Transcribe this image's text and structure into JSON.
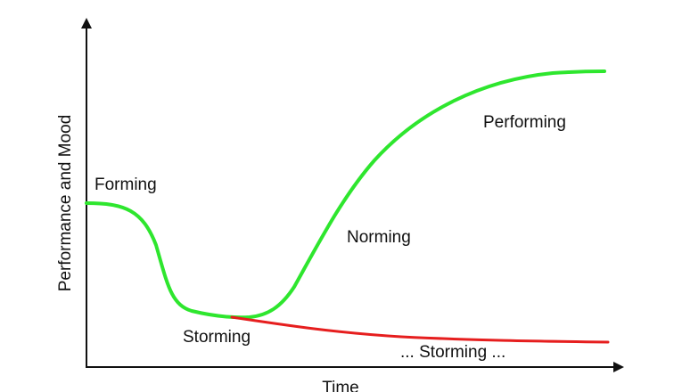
{
  "axes": {
    "y_label": "Performance and Mood",
    "x_label": "Time"
  },
  "stages": {
    "forming": "Forming",
    "storming": "Storming",
    "norming": "Norming",
    "performing": "Performing",
    "storming_continued": "... Storming ..."
  }
}
